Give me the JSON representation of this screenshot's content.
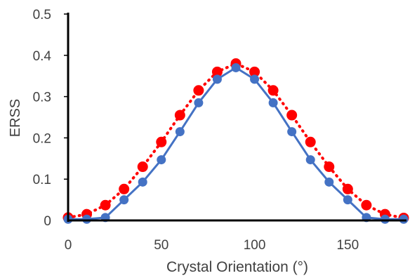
{
  "chart_data": {
    "type": "line",
    "title": "",
    "xlabel": "Crystal Orientation (°)",
    "ylabel": "ERSS",
    "xlim": [
      0,
      180
    ],
    "ylim": [
      0,
      0.5
    ],
    "x_ticks": [
      0,
      50,
      100,
      150
    ],
    "y_ticks": [
      0,
      0.1,
      0.2,
      0.3,
      0.4,
      0.5
    ],
    "grid": false,
    "legend": "none",
    "series": [
      {
        "style": "red-dotted-circles",
        "color": "#ff0000",
        "x": [
          0,
          10,
          20,
          30,
          40,
          50,
          60,
          70,
          80,
          90,
          100,
          110,
          120,
          130,
          140,
          150,
          160,
          170,
          180
        ],
        "y": [
          0.007,
          0.015,
          0.037,
          0.076,
          0.13,
          0.19,
          0.255,
          0.315,
          0.36,
          0.38,
          0.36,
          0.315,
          0.255,
          0.19,
          0.13,
          0.076,
          0.037,
          0.015,
          0.006
        ]
      },
      {
        "style": "blue-solid-circles",
        "color": "#4472c4",
        "x": [
          0,
          10,
          20,
          30,
          40,
          50,
          60,
          70,
          80,
          90,
          100,
          110,
          120,
          130,
          140,
          150,
          160,
          170,
          180
        ],
        "y": [
          0.003,
          0.003,
          0.007,
          0.05,
          0.093,
          0.147,
          0.215,
          0.285,
          0.342,
          0.37,
          0.342,
          0.285,
          0.215,
          0.147,
          0.093,
          0.05,
          0.007,
          0.003,
          0.003
        ]
      }
    ]
  }
}
